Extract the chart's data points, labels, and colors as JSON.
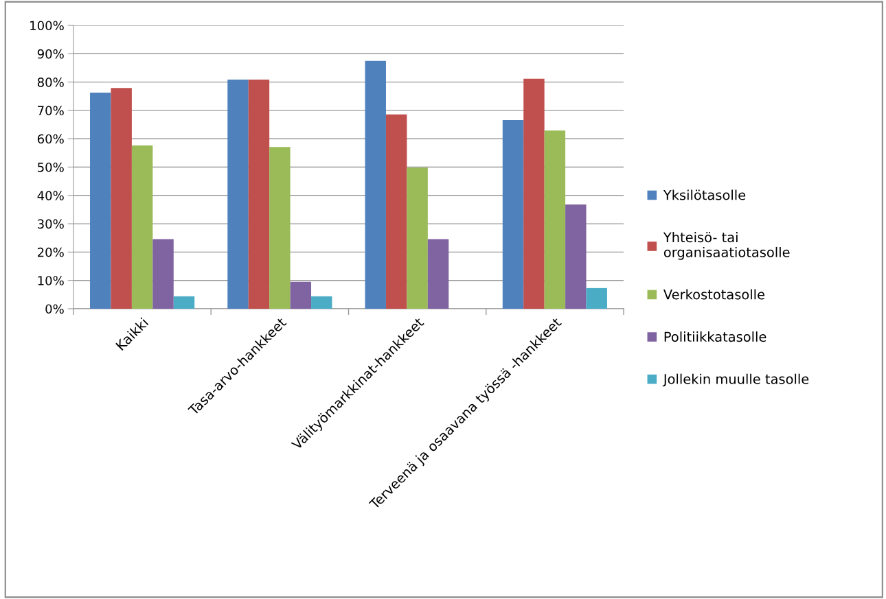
{
  "chart_data": {
    "type": "bar",
    "categories": [
      "Kaikki",
      "Tasa-arvo-hankkeet",
      "Välityömarkkinat-hankkeet",
      "Terveenä ja osaavana työssä -hankkeet"
    ],
    "series": [
      {
        "name": "Yksilötasolle",
        "color": "#4f81bd",
        "values": [
          76.3,
          80.9,
          87.5,
          66.6
        ]
      },
      {
        "name": "Yhteisö- tai\norganisaatiotasolle",
        "color": "#c0504d",
        "values": [
          77.9,
          80.9,
          68.6,
          81.2
        ]
      },
      {
        "name": "Verkostotasolle",
        "color": "#9bbb59",
        "values": [
          57.6,
          57.1,
          49.8,
          62.9
        ]
      },
      {
        "name": "Politiikkatasolle",
        "color": "#8064a2",
        "values": [
          24.6,
          9.5,
          24.6,
          36.8
        ]
      },
      {
        "name": "Jollekin muulle tasolle",
        "color": "#4bacc6",
        "values": [
          4.4,
          4.4,
          0,
          7.3
        ]
      }
    ],
    "ylim": [
      0,
      100
    ],
    "yticks": [
      {
        "value": 0,
        "label": "0%"
      },
      {
        "value": 10,
        "label": "10%"
      },
      {
        "value": 20,
        "label": "20%"
      },
      {
        "value": 30,
        "label": "30%"
      },
      {
        "value": 40,
        "label": "40%"
      },
      {
        "value": 50,
        "label": "50%"
      },
      {
        "value": 60,
        "label": "60%"
      },
      {
        "value": 70,
        "label": "70%"
      },
      {
        "value": 80,
        "label": "80%"
      },
      {
        "value": 90,
        "label": "90%"
      },
      {
        "value": 100,
        "label": "100%"
      }
    ],
    "grid": "y",
    "legend": "right"
  }
}
